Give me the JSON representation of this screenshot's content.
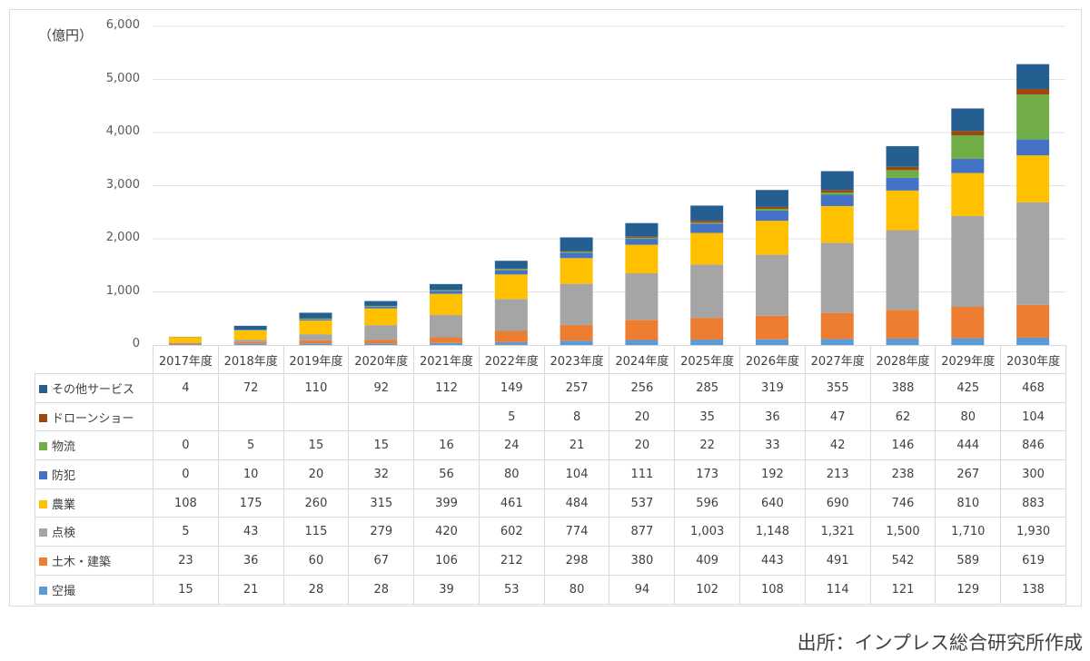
{
  "unit_label": "（億円）",
  "source": "出所：インプレス総合研究所作成",
  "chart_data": {
    "type": "bar",
    "stacked": true,
    "unit": "億円",
    "ylim": [
      0,
      6000
    ],
    "yticks": [
      "0",
      "1,000",
      "2,000",
      "3,000",
      "4,000",
      "5,000",
      "6,000"
    ],
    "categories": [
      "2017年度",
      "2018年度",
      "2019年度",
      "2020年度",
      "2021年度",
      "2022年度",
      "2023年度",
      "2024年度",
      "2025年度",
      "2026年度",
      "2027年度",
      "2028年度",
      "2029年度",
      "2030年度"
    ],
    "series": [
      {
        "name": "空撮",
        "color": "#5b9bd5",
        "values": [
          15,
          21,
          28,
          28,
          39,
          53,
          80,
          94,
          102,
          108,
          114,
          121,
          129,
          138
        ],
        "labels": [
          "15",
          "21",
          "28",
          "28",
          "39",
          "53",
          "80",
          "94",
          "102",
          "108",
          "114",
          "121",
          "129",
          "138"
        ]
      },
      {
        "name": "土木・建築",
        "color": "#ed7d31",
        "values": [
          23,
          36,
          60,
          67,
          106,
          212,
          298,
          380,
          409,
          443,
          491,
          542,
          589,
          619
        ],
        "labels": [
          "23",
          "36",
          "60",
          "67",
          "106",
          "212",
          "298",
          "380",
          "409",
          "443",
          "491",
          "542",
          "589",
          "619"
        ]
      },
      {
        "name": "点検",
        "color": "#a5a5a5",
        "values": [
          5,
          43,
          115,
          279,
          420,
          602,
          774,
          877,
          1003,
          1148,
          1321,
          1500,
          1710,
          1930
        ],
        "labels": [
          "5",
          "43",
          "115",
          "279",
          "420",
          "602",
          "774",
          "877",
          "1,003",
          "1,148",
          "1,321",
          "1,500",
          "1,710",
          "1,930"
        ]
      },
      {
        "name": "農業",
        "color": "#ffc000",
        "values": [
          108,
          175,
          260,
          315,
          399,
          461,
          484,
          537,
          596,
          640,
          690,
          746,
          810,
          883
        ],
        "labels": [
          "108",
          "175",
          "260",
          "315",
          "399",
          "461",
          "484",
          "537",
          "596",
          "640",
          "690",
          "746",
          "810",
          "883"
        ]
      },
      {
        "name": "防犯",
        "color": "#4472c4",
        "values": [
          0,
          10,
          20,
          32,
          56,
          80,
          104,
          111,
          173,
          192,
          213,
          238,
          267,
          300
        ],
        "labels": [
          "0",
          "10",
          "20",
          "32",
          "56",
          "80",
          "104",
          "111",
          "173",
          "192",
          "213",
          "238",
          "267",
          "300"
        ]
      },
      {
        "name": "物流",
        "color": "#70ad47",
        "values": [
          0,
          5,
          15,
          15,
          16,
          24,
          21,
          20,
          22,
          33,
          42,
          146,
          444,
          846
        ],
        "labels": [
          "0",
          "5",
          "15",
          "15",
          "16",
          "24",
          "21",
          "20",
          "22",
          "33",
          "42",
          "146",
          "444",
          "846"
        ]
      },
      {
        "name": "ドローンショー",
        "color": "#9e480e",
        "values": [
          0,
          0,
          0,
          0,
          0,
          5,
          8,
          20,
          35,
          36,
          47,
          62,
          80,
          104
        ],
        "labels": [
          "",
          "",
          "",
          "",
          "",
          "5",
          "8",
          "20",
          "35",
          "36",
          "47",
          "62",
          "80",
          "104"
        ]
      },
      {
        "name": "その他サービス",
        "color": "#255e91",
        "values": [
          4,
          72,
          110,
          92,
          112,
          149,
          257,
          256,
          285,
          319,
          355,
          388,
          425,
          468
        ],
        "labels": [
          "4",
          "72",
          "110",
          "92",
          "112",
          "149",
          "257",
          "256",
          "285",
          "319",
          "355",
          "388",
          "425",
          "468"
        ]
      }
    ]
  }
}
